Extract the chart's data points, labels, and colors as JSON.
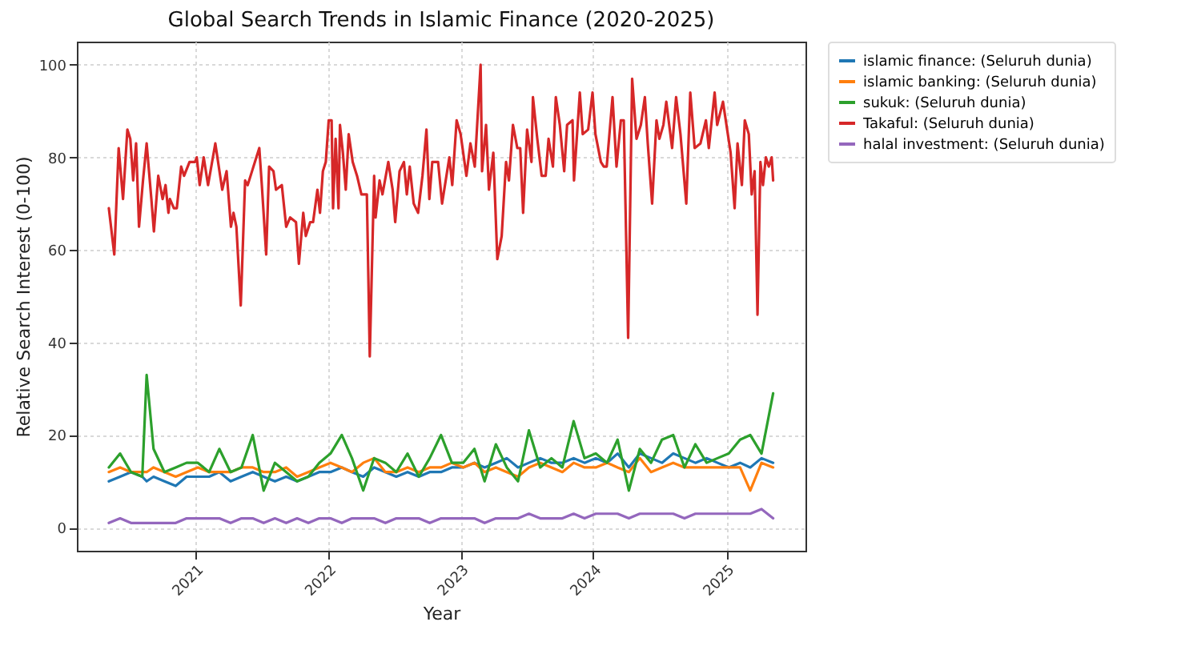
{
  "chart_data": {
    "type": "line",
    "title": "Global Search Trends in Islamic Finance (2020-2025)",
    "xlabel": "Year",
    "ylabel": "Relative Search Interest (0-100)",
    "x": [
      "2020-05-08",
      "2020-06-08",
      "2020-07-08",
      "2020-08-08",
      "2020-08-20",
      "2020-09-08",
      "2020-10-08",
      "2020-11-08",
      "2020-12-08",
      "2021-01-08",
      "2021-02-08",
      "2021-03-08",
      "2021-04-08",
      "2021-05-08",
      "2021-06-08",
      "2021-07-08",
      "2021-08-08",
      "2021-09-08",
      "2021-10-08",
      "2021-11-08",
      "2021-12-08",
      "2022-01-08",
      "2022-02-08",
      "2022-03-08",
      "2022-04-08",
      "2022-05-08",
      "2022-06-08",
      "2022-07-08",
      "2022-08-08",
      "2022-09-08",
      "2022-10-08",
      "2022-11-08",
      "2022-12-08",
      "2023-01-08",
      "2023-02-08",
      "2023-03-08",
      "2023-04-08",
      "2023-05-08",
      "2023-06-08",
      "2023-07-08",
      "2023-08-08",
      "2023-09-08",
      "2023-10-08",
      "2023-11-08",
      "2023-12-08",
      "2024-01-08",
      "2024-02-08",
      "2024-03-08",
      "2024-04-08",
      "2024-05-08",
      "2024-06-08",
      "2024-07-08",
      "2024-08-08",
      "2024-09-08",
      "2024-10-08",
      "2024-11-08",
      "2024-12-08",
      "2025-01-08",
      "2025-02-08",
      "2025-03-08",
      "2025-04-08",
      "2025-05-10"
    ],
    "series": [
      {
        "name": "islamic finance: (Seluruh dunia)",
        "color": "#1f77b4",
        "values": [
          10,
          11,
          12,
          11,
          10,
          11,
          10,
          9,
          11,
          11,
          11,
          12,
          10,
          11,
          12,
          11,
          10,
          11,
          10,
          11,
          12,
          12,
          13,
          12,
          11,
          13,
          12,
          11,
          12,
          11,
          12,
          12,
          13,
          13,
          14,
          13,
          14,
          15,
          13,
          14,
          15,
          14,
          14,
          15,
          14,
          15,
          14,
          16,
          13,
          16,
          15,
          14,
          16,
          15,
          14,
          15,
          14,
          13,
          14,
          13,
          15,
          14
        ]
      },
      {
        "name": "islamic banking: (Seluruh dunia)",
        "color": "#ff7f0e",
        "values": [
          12,
          13,
          12,
          12,
          12,
          13,
          12,
          11,
          12,
          13,
          12,
          12,
          12,
          13,
          13,
          12,
          12,
          13,
          11,
          12,
          13,
          14,
          13,
          12,
          14,
          15,
          12,
          12,
          13,
          12,
          13,
          13,
          14,
          13,
          14,
          12,
          13,
          12,
          11,
          13,
          14,
          13,
          12,
          14,
          13,
          13,
          14,
          13,
          12,
          15,
          12,
          13,
          14,
          13,
          13,
          13,
          13,
          13,
          13,
          8,
          14,
          13
        ]
      },
      {
        "name": "sukuk: (Seluruh dunia)",
        "color": "#2ca02c",
        "values": [
          13,
          16,
          12,
          11,
          33,
          17,
          12,
          13,
          14,
          14,
          12,
          17,
          12,
          13,
          20,
          8,
          14,
          12,
          10,
          11,
          14,
          16,
          20,
          15,
          8,
          15,
          14,
          12,
          16,
          11,
          15,
          20,
          14,
          14,
          17,
          10,
          18,
          13,
          10,
          21,
          13,
          15,
          13,
          23,
          15,
          16,
          14,
          19,
          8,
          17,
          14,
          19,
          20,
          13,
          18,
          14,
          15,
          16,
          19,
          20,
          16,
          29
        ]
      },
      {
        "name": "Takaful: (Seluruh dunia)",
        "color": "#d62728",
        "x": [
          "2020-05-08",
          "2020-05-23",
          "2020-06-04",
          "2020-06-16",
          "2020-06-28",
          "2020-07-06",
          "2020-07-14",
          "2020-07-22",
          "2020-07-30",
          "2020-08-10",
          "2020-08-20",
          "2020-09-02",
          "2020-09-09",
          "2020-09-21",
          "2020-10-03",
          "2020-10-11",
          "2020-10-19",
          "2020-10-23",
          "2020-11-03",
          "2020-11-11",
          "2020-11-23",
          "2020-12-01",
          "2020-12-16",
          "2020-12-31",
          "2021-01-05",
          "2021-01-13",
          "2021-01-24",
          "2021-02-05",
          "2021-02-25",
          "2021-03-16",
          "2021-03-28",
          "2021-04-09",
          "2021-04-16",
          "2021-04-24",
          "2021-05-06",
          "2021-05-18",
          "2021-05-25",
          "2021-06-06",
          "2021-06-14",
          "2021-06-26",
          "2021-07-03",
          "2021-07-15",
          "2021-07-23",
          "2021-08-04",
          "2021-08-11",
          "2021-08-27",
          "2021-09-08",
          "2021-09-19",
          "2021-10-05",
          "2021-10-13",
          "2021-10-25",
          "2021-11-01",
          "2021-11-13",
          "2021-11-21",
          "2021-12-03",
          "2021-12-10",
          "2021-12-18",
          "2021-12-26",
          "2022-01-03",
          "2022-01-11",
          "2022-01-15",
          "2022-01-22",
          "2022-01-30",
          "2022-02-03",
          "2022-02-11",
          "2022-02-19",
          "2022-02-27",
          "2022-03-10",
          "2022-03-22",
          "2022-04-03",
          "2022-04-18",
          "2022-04-26",
          "2022-05-08",
          "2022-05-12",
          "2022-05-23",
          "2022-05-31",
          "2022-06-16",
          "2022-06-28",
          "2022-07-05",
          "2022-07-17",
          "2022-07-29",
          "2022-08-06",
          "2022-08-14",
          "2022-08-25",
          "2022-09-06",
          "2022-09-18",
          "2022-09-29",
          "2022-10-07",
          "2022-10-15",
          "2022-10-31",
          "2022-11-11",
          "2022-12-01",
          "2022-12-09",
          "2022-12-21",
          "2023-01-01",
          "2023-01-17",
          "2023-01-28",
          "2023-02-09",
          "2023-02-25",
          "2023-03-01",
          "2023-03-12",
          "2023-03-20",
          "2023-04-01",
          "2023-04-12",
          "2023-04-24",
          "2023-05-06",
          "2023-05-14",
          "2023-05-25",
          "2023-06-06",
          "2023-06-14",
          "2023-06-22",
          "2023-07-03",
          "2023-07-15",
          "2023-07-19",
          "2023-07-31",
          "2023-08-12",
          "2023-08-23",
          "2023-08-31",
          "2023-09-12",
          "2023-09-20",
          "2023-10-01",
          "2023-10-13",
          "2023-10-21",
          "2023-11-05",
          "2023-11-09",
          "2023-11-25",
          "2023-12-03",
          "2023-12-18",
          "2023-12-30",
          "2024-01-07",
          "2024-01-22",
          "2024-01-30",
          "2024-02-07",
          "2024-02-23",
          "2024-03-05",
          "2024-03-17",
          "2024-03-25",
          "2024-04-06",
          "2024-04-17",
          "2024-04-29",
          "2024-05-11",
          "2024-05-22",
          "2024-05-30",
          "2024-06-11",
          "2024-06-23",
          "2024-07-01",
          "2024-07-12",
          "2024-07-20",
          "2024-08-05",
          "2024-08-16",
          "2024-08-28",
          "2024-09-13",
          "2024-09-24",
          "2024-10-06",
          "2024-10-22",
          "2024-11-06",
          "2024-11-14",
          "2024-11-30",
          "2024-12-07",
          "2024-12-23",
          "2025-01-13",
          "2025-01-24",
          "2025-02-01",
          "2025-02-13",
          "2025-02-21",
          "2025-03-04",
          "2025-03-12",
          "2025-03-20",
          "2025-03-28",
          "2025-04-05",
          "2025-04-12",
          "2025-04-20",
          "2025-04-28",
          "2025-05-06",
          "2025-05-10"
        ],
        "values": [
          69,
          59,
          82,
          71,
          86,
          84,
          75,
          83,
          65,
          75,
          83,
          71,
          64,
          76,
          71,
          74,
          68,
          71,
          69,
          69,
          78,
          76,
          79,
          79,
          80,
          74,
          80,
          74,
          83,
          73,
          77,
          65,
          68,
          65,
          48,
          75,
          74,
          77,
          79,
          82,
          74,
          59,
          78,
          77,
          73,
          74,
          65,
          67,
          66,
          57,
          68,
          63,
          66,
          66,
          73,
          68,
          77,
          79,
          88,
          88,
          69,
          84,
          69,
          87,
          81,
          73,
          85,
          79,
          76,
          72,
          72,
          37,
          76,
          67,
          75,
          72,
          79,
          73,
          66,
          77,
          79,
          72,
          78,
          70,
          68,
          76,
          86,
          71,
          79,
          79,
          70,
          80,
          74,
          88,
          85,
          76,
          83,
          78,
          100,
          77,
          87,
          73,
          81,
          58,
          63,
          79,
          75,
          87,
          82,
          82,
          68,
          86,
          79,
          93,
          84,
          76,
          76,
          84,
          78,
          93,
          87,
          77,
          87,
          88,
          75,
          94,
          85,
          86,
          94,
          85,
          79,
          78,
          78,
          93,
          78,
          88,
          88,
          41,
          97,
          84,
          87,
          93,
          83,
          70,
          88,
          84,
          87,
          92,
          82,
          93,
          85,
          70,
          94,
          82,
          83,
          88,
          82,
          94,
          87,
          92,
          81,
          69,
          83,
          74,
          88,
          85,
          72,
          77,
          46,
          79,
          74,
          80,
          78,
          80,
          75
        ]
      },
      {
        "name": "halal investment: (Seluruh dunia)",
        "color": "#9467bd",
        "values": [
          1,
          2,
          1,
          1,
          1,
          1,
          1,
          1,
          2,
          2,
          2,
          2,
          1,
          2,
          2,
          1,
          2,
          1,
          2,
          1,
          2,
          2,
          1,
          2,
          2,
          2,
          1,
          2,
          2,
          2,
          1,
          2,
          2,
          2,
          2,
          1,
          2,
          2,
          2,
          3,
          2,
          2,
          2,
          3,
          2,
          3,
          3,
          3,
          2,
          3,
          3,
          3,
          3,
          2,
          3,
          3,
          3,
          3,
          3,
          3,
          4,
          2
        ]
      }
    ],
    "xlim": [
      "2020-02-10",
      "2025-08-07"
    ],
    "xticks": [
      {
        "value": "2021-01-01",
        "label": "2021"
      },
      {
        "value": "2022-01-01",
        "label": "2022"
      },
      {
        "value": "2023-01-01",
        "label": "2023"
      },
      {
        "value": "2024-01-01",
        "label": "2024"
      },
      {
        "value": "2025-01-01",
        "label": "2025"
      }
    ],
    "ylim": [
      -5,
      105
    ],
    "yticks": [
      0,
      20,
      40,
      60,
      80,
      100
    ],
    "grid": true,
    "legend": "top right"
  }
}
